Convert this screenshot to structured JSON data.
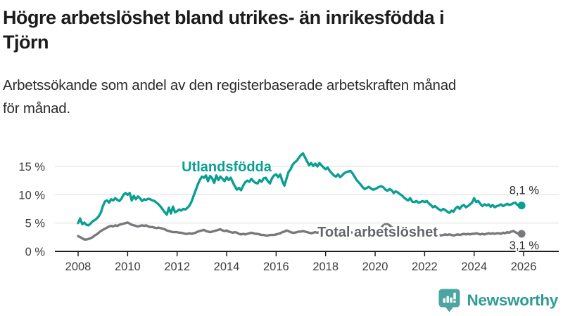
{
  "header": {
    "title_lines": [
      "Högre arbetslöshet bland utrikes- än inrikesfödda i",
      "Tjörn"
    ],
    "subtitle_lines": [
      "Arbetssökande som andel av den registerbaserade arbetskraften månad",
      "för månad."
    ]
  },
  "chart_data": {
    "type": "line",
    "title": "Högre arbetslöshet bland utrikes- än inrikesfödda i Tjörn",
    "subtitle": "Arbetssökande som andel av den registerbaserade arbetskraften månad för månad.",
    "unit": "%",
    "grid": "horizontal",
    "x_axis": {
      "ticks": [
        2008,
        2010,
        2012,
        2014,
        2016,
        2018,
        2020,
        2022,
        2024,
        2026
      ],
      "range": [
        2007.1,
        2027.4
      ]
    },
    "y_axis": {
      "ticks": [
        {
          "value": 0,
          "label": "0 %"
        },
        {
          "value": 5,
          "label": "5 %"
        },
        {
          "value": 10,
          "label": "10 %"
        },
        {
          "value": 15,
          "label": "15 %"
        }
      ],
      "range": [
        0,
        17.7
      ]
    },
    "series": [
      {
        "name": "Utlandsfödda",
        "color": "#0a9f93",
        "end_label": "8,1 %",
        "end_value": 8.1,
        "label_at": {
          "year": 2014.0,
          "value": 15.0
        },
        "start_year": 2008,
        "points_per_year": 12,
        "values": [
          5.0,
          5.8,
          4.8,
          5.1,
          4.7,
          4.6,
          4.9,
          5.3,
          5.5,
          5.8,
          6.2,
          6.8,
          8.0,
          8.8,
          9.0,
          8.6,
          9.2,
          9.0,
          9.4,
          9.1,
          8.9,
          9.3,
          10.0,
          10.3,
          10.0,
          10.3,
          9.0,
          9.8,
          9.2,
          9.7,
          9.4,
          8.9,
          9.2,
          9.1,
          9.3,
          9.2,
          9.0,
          8.9,
          8.6,
          8.3,
          7.9,
          7.4,
          6.9,
          6.5,
          7.7,
          6.7,
          7.9,
          6.9,
          7.1,
          7.4,
          7.2,
          7.5,
          7.4,
          7.7,
          8.1,
          8.8,
          9.8,
          10.8,
          11.8,
          12.6,
          13.2,
          13.0,
          13.4,
          12.4,
          13.3,
          12.9,
          12.1,
          13.4,
          12.6,
          13.2,
          12.8,
          12.4,
          13.1,
          12.6,
          13.0,
          12.2,
          11.5,
          10.9,
          11.2,
          10.8,
          11.6,
          12.2,
          12.5,
          12.3,
          12.8,
          12.4,
          12.1,
          12.0,
          12.6,
          12.3,
          12.9,
          13.0,
          12.4,
          12.0,
          12.9,
          13.4,
          13.6,
          13.1,
          13.6,
          12.4,
          11.6,
          12.8,
          14.0,
          14.5,
          15.3,
          15.7,
          16.0,
          16.5,
          17.0,
          17.3,
          16.6,
          15.9,
          15.2,
          15.6,
          15.1,
          15.5,
          15.0,
          15.6,
          15.2,
          14.8,
          14.5,
          14.8,
          14.2,
          13.8,
          13.4,
          13.2,
          13.6,
          13.1,
          13.4,
          13.8,
          14.0,
          14.1,
          14.2,
          13.8,
          13.2,
          12.6,
          12.2,
          11.8,
          11.3,
          11.0,
          11.2,
          11.4,
          11.1,
          10.9,
          11.0,
          11.2,
          11.4,
          11.5,
          11.3,
          10.9,
          10.7,
          11.0,
          10.8,
          10.3,
          10.6,
          10.4,
          10.1,
          9.9,
          9.5,
          9.2,
          9.0,
          9.4,
          8.8,
          8.7,
          8.9,
          8.6,
          8.7,
          8.9,
          8.7,
          8.9,
          8.5,
          8.2,
          7.8,
          8.0,
          7.7,
          7.4,
          7.2,
          7.5,
          7.3,
          7.0,
          6.8,
          7.2,
          7.0,
          7.6,
          7.9,
          7.5,
          8.0,
          8.2,
          7.8,
          8.0,
          8.3,
          8.6,
          9.4,
          8.7,
          8.9,
          8.4,
          8.0,
          8.3,
          8.1,
          8.3,
          7.9,
          8.2,
          7.8,
          8.0,
          8.1,
          8.3,
          8.0,
          8.2,
          8.4,
          8.2,
          8.3,
          8.5,
          8.6,
          8.2,
          7.9,
          8.1
        ]
      },
      {
        "name": "Total arbetslöshet",
        "color": "#77797d",
        "label_color": "#63666c",
        "end_label": "3,1 %",
        "end_value": 3.1,
        "label_at": {
          "year": 2020.1,
          "value": 3.45
        },
        "start_year": 2008,
        "points_per_year": 12,
        "values": [
          2.7,
          2.5,
          2.3,
          2.1,
          2.1,
          2.2,
          2.3,
          2.5,
          2.8,
          3.0,
          3.3,
          3.6,
          3.8,
          4.0,
          4.2,
          4.4,
          4.5,
          4.4,
          4.6,
          4.5,
          4.7,
          4.8,
          4.9,
          5.0,
          5.1,
          4.9,
          4.7,
          4.6,
          4.5,
          4.4,
          4.5,
          4.6,
          4.5,
          4.6,
          4.4,
          4.3,
          4.3,
          4.2,
          4.1,
          4.2,
          4.1,
          4.0,
          3.9,
          3.7,
          3.6,
          3.5,
          3.4,
          3.4,
          3.4,
          3.3,
          3.3,
          3.2,
          3.1,
          3.1,
          3.2,
          3.1,
          3.2,
          3.3,
          3.5,
          3.6,
          3.7,
          3.8,
          3.6,
          3.5,
          3.4,
          3.5,
          3.6,
          3.7,
          3.8,
          3.9,
          3.7,
          3.6,
          3.7,
          3.5,
          3.4,
          3.3,
          3.4,
          3.3,
          3.1,
          3.0,
          3.1,
          3.0,
          3.1,
          3.2,
          3.3,
          3.2,
          3.1,
          3.1,
          3.0,
          2.9,
          2.9,
          2.8,
          2.8,
          2.9,
          2.9,
          2.9,
          3.0,
          3.1,
          3.2,
          3.4,
          3.5,
          3.7,
          3.6,
          3.4,
          3.3,
          3.3,
          3.4,
          3.5,
          3.5,
          3.6,
          3.5,
          3.4,
          3.3,
          3.2,
          3.3,
          3.4,
          3.3,
          3.4,
          3.4,
          3.5,
          3.4,
          3.5,
          3.4,
          3.3,
          3.2,
          3.3,
          3.2,
          3.3,
          3.4,
          3.3,
          3.4,
          3.3,
          3.4,
          3.3,
          3.2,
          3.3,
          3.2,
          3.1,
          3.2,
          3.1,
          3.2,
          3.3,
          3.3,
          3.4,
          3.4,
          3.5,
          3.7,
          4.2,
          4.6,
          4.8,
          4.8,
          4.6,
          4.3,
          4.0,
          3.8,
          3.7,
          3.6,
          3.5,
          3.4,
          3.3,
          3.2,
          3.1,
          3.0,
          3.0,
          2.9,
          2.9,
          2.9,
          3.0,
          3.0,
          3.1,
          3.0,
          2.9,
          2.8,
          2.9,
          2.8,
          2.9,
          2.8,
          2.9,
          3.0,
          2.9,
          3.0,
          2.9,
          2.8,
          2.9,
          3.0,
          2.9,
          3.0,
          3.1,
          3.0,
          3.1,
          3.0,
          3.1,
          3.1,
          3.2,
          3.1,
          3.0,
          3.1,
          3.0,
          3.1,
          3.2,
          3.1,
          3.2,
          3.1,
          3.2,
          3.2,
          3.1,
          3.3,
          3.2,
          3.4,
          3.3,
          3.5,
          3.6,
          3.4,
          3.2,
          3.0,
          3.1
        ]
      }
    ]
  },
  "branding": {
    "name": "Newsworthy",
    "icon": "bar-chart-speech-bubble-icon",
    "icon_color": "#4ba6a1",
    "text_color": "#2e9c95"
  }
}
